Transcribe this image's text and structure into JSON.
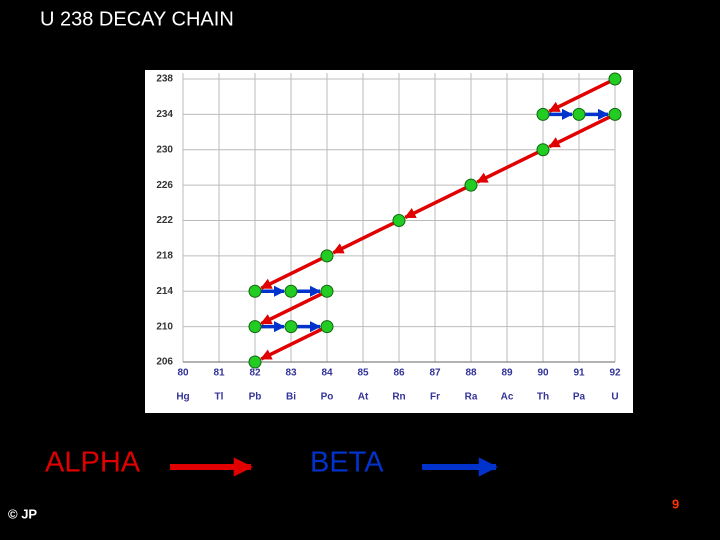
{
  "chart_data": {
    "type": "scatter",
    "title": "U 238 DECAY CHAIN",
    "x": [
      92,
      90,
      91,
      92,
      90,
      88,
      86,
      84,
      82,
      83,
      84,
      82,
      83,
      84,
      82
    ],
    "y": [
      238,
      234,
      234,
      234,
      230,
      226,
      222,
      218,
      214,
      214,
      214,
      210,
      210,
      210,
      206
    ],
    "color": "#22cc22",
    "arrows": [
      {
        "name": "ALPHA",
        "color": "#e00000",
        "x1": [
          92,
          92,
          90,
          88,
          86,
          84,
          84,
          84
        ],
        "y1": [
          238,
          234,
          230,
          226,
          222,
          218,
          214,
          210
        ],
        "x2": [
          90,
          90,
          88,
          86,
          84,
          82,
          82,
          82
        ],
        "y2": [
          234,
          230,
          226,
          222,
          218,
          214,
          210,
          206
        ]
      },
      {
        "name": "BETA",
        "color": "#0033cc",
        "x1": [
          90,
          91,
          82,
          83,
          82,
          83
        ],
        "y1": [
          234,
          234,
          214,
          214,
          210,
          210
        ],
        "x2": [
          91,
          92,
          83,
          84,
          83,
          84
        ],
        "y2": [
          234,
          234,
          214,
          214,
          210,
          210
        ]
      }
    ],
    "xlim": [
      80,
      92
    ],
    "ylim": [
      206,
      238
    ],
    "xticks": [
      80,
      81,
      82,
      83,
      84,
      85,
      86,
      87,
      88,
      89,
      90,
      91,
      92
    ],
    "xtick_symbols": [
      "Hg",
      "Tl",
      "Pb",
      "Bi",
      "Po",
      "At",
      "Rn",
      "Fr",
      "Ra",
      "Ac",
      "Th",
      "Pa",
      "U"
    ],
    "yticks": [
      206,
      210,
      214,
      218,
      222,
      226,
      230,
      234,
      238
    ],
    "grid": true
  },
  "footer": {
    "credit": "© JP",
    "page": "9"
  }
}
